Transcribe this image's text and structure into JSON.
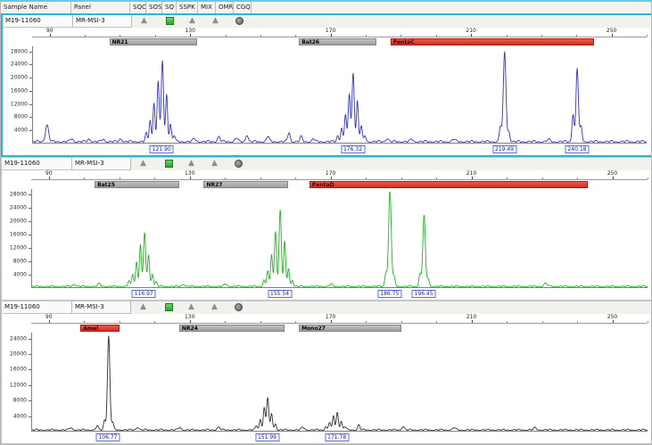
{
  "header": {
    "columns": [
      {
        "label": "Sample Name"
      },
      {
        "label": "Panel"
      },
      {
        "label": "SQO"
      },
      {
        "label": "SOS"
      },
      {
        "label": "SQ"
      },
      {
        "label": "SSPK"
      },
      {
        "label": "MIX"
      },
      {
        "label": "OMR"
      },
      {
        "label": "CGQ"
      }
    ]
  },
  "axis": {
    "xmin": 85,
    "xmax": 260,
    "major_ticks": [
      90,
      130,
      170,
      210,
      250
    ],
    "minor_tick_step": 10
  },
  "colors": {
    "selected_border": "#2fb4d8",
    "marker_gray": "#ababab",
    "marker_red": "#e23b3b",
    "peak_label_border": "#5a6fd6"
  },
  "panels": [
    {
      "sample_name": "M19-11060",
      "panel_name": "MR-MSI-3",
      "selected": true,
      "trace_color": "#3333cc",
      "ymax": 29500,
      "y_ticks": [
        28000,
        24000,
        20000,
        16000,
        12000,
        8000,
        4000
      ],
      "noise_amp": 650,
      "flags": [
        "triangle",
        "green-square",
        "triangle",
        "triangle",
        "circle"
      ],
      "markers": [
        {
          "label": "NR21",
          "start": 107,
          "end": 132,
          "style": "gray"
        },
        {
          "label": "Bat26",
          "start": 161,
          "end": 183,
          "style": "gray"
        },
        {
          "label": "PentaC",
          "start": 187,
          "end": 245,
          "style": "red"
        }
      ],
      "peaks": [
        [
          89,
          5200,
          0.45
        ],
        [
          96,
          900,
          0.4
        ],
        [
          101,
          800,
          0.4
        ],
        [
          105,
          750,
          0.4
        ],
        [
          110,
          850,
          0.4
        ],
        [
          117.3,
          2500,
          0.28
        ],
        [
          118.4,
          6500,
          0.28
        ],
        [
          119.5,
          12000,
          0.28
        ],
        [
          120.7,
          18500,
          0.3
        ],
        [
          121.9,
          24500,
          0.32
        ],
        [
          123.1,
          14500,
          0.28
        ],
        [
          124.2,
          5500,
          0.28
        ],
        [
          125.3,
          2000,
          0.28
        ],
        [
          131,
          900,
          0.4
        ],
        [
          138,
          1500,
          0.38
        ],
        [
          143,
          1100,
          0.38
        ],
        [
          146,
          2100,
          0.35
        ],
        [
          152,
          1700,
          0.35
        ],
        [
          158,
          2800,
          0.35
        ],
        [
          161.5,
          1500,
          0.35
        ],
        [
          165,
          900,
          0.35
        ],
        [
          171.9,
          1900,
          0.28
        ],
        [
          173,
          4200,
          0.28
        ],
        [
          174.1,
          8500,
          0.28
        ],
        [
          175.2,
          14500,
          0.3
        ],
        [
          176.3,
          21000,
          0.32
        ],
        [
          177.5,
          12500,
          0.28
        ],
        [
          178.6,
          5000,
          0.28
        ],
        [
          179.7,
          1800,
          0.28
        ],
        [
          186,
          1000,
          0.4
        ],
        [
          193,
          700,
          0.4
        ],
        [
          205,
          800,
          0.4
        ],
        [
          218.3,
          4800,
          0.3
        ],
        [
          219.5,
          27500,
          0.38
        ],
        [
          220.7,
          3200,
          0.3
        ],
        [
          232,
          600,
          0.4
        ],
        [
          239,
          8500,
          0.3
        ],
        [
          240.2,
          22500,
          0.34
        ],
        [
          241.3,
          4500,
          0.3
        ]
      ],
      "peak_labels": [
        {
          "x": 121.9,
          "text": "121.90"
        },
        {
          "x": 176.32,
          "text": "176.32"
        },
        {
          "x": 219.49,
          "text": "219.49"
        },
        {
          "x": 240.18,
          "text": "240.18"
        }
      ]
    },
    {
      "sample_name": "M19-11060",
      "panel_name": "MR-MSI-3",
      "selected": false,
      "trace_color": "#22b422",
      "ymax": 29500,
      "y_ticks": [
        28000,
        24000,
        20000,
        16000,
        12000,
        8000,
        4000
      ],
      "noise_amp": 420,
      "flags": [
        "triangle",
        "green-square",
        "triangle",
        "triangle",
        "circle"
      ],
      "markers": [
        {
          "label": "Bat25",
          "start": 103,
          "end": 127,
          "style": "gray"
        },
        {
          "label": "NR27",
          "start": 134,
          "end": 158,
          "style": "gray"
        },
        {
          "label": "PentaD",
          "start": 164,
          "end": 243,
          "style": "red"
        }
      ],
      "peaks": [
        [
          97,
          700,
          0.4
        ],
        [
          104,
          800,
          0.4
        ],
        [
          112.5,
          1600,
          0.28
        ],
        [
          113.6,
          3800,
          0.28
        ],
        [
          114.7,
          7500,
          0.28
        ],
        [
          115.8,
          12500,
          0.28
        ],
        [
          116.97,
          16000,
          0.32
        ],
        [
          118.1,
          9500,
          0.28
        ],
        [
          119.2,
          3800,
          0.28
        ],
        [
          120.3,
          1400,
          0.28
        ],
        [
          128,
          700,
          0.4
        ],
        [
          140,
          800,
          0.4
        ],
        [
          150.9,
          2000,
          0.28
        ],
        [
          152,
          4800,
          0.28
        ],
        [
          153.1,
          9500,
          0.28
        ],
        [
          154.2,
          16500,
          0.3
        ],
        [
          155.54,
          23000,
          0.32
        ],
        [
          156.8,
          13500,
          0.28
        ],
        [
          157.9,
          5500,
          0.28
        ],
        [
          159,
          2000,
          0.28
        ],
        [
          170,
          700,
          0.4
        ],
        [
          185.6,
          4200,
          0.3
        ],
        [
          186.75,
          28500,
          0.38
        ],
        [
          187.9,
          2800,
          0.3
        ],
        [
          195.3,
          3800,
          0.3
        ],
        [
          196.45,
          21500,
          0.36
        ],
        [
          197.6,
          2500,
          0.3
        ],
        [
          231,
          900,
          0.5
        ]
      ],
      "peak_labels": [
        {
          "x": 116.97,
          "text": "116.97"
        },
        {
          "x": 155.54,
          "text": "155.54"
        },
        {
          "x": 186.75,
          "text": "186.75"
        },
        {
          "x": 196.45,
          "text": "196.45"
        }
      ]
    },
    {
      "sample_name": "M19-11060",
      "panel_name": "MR-MSI-3",
      "selected": false,
      "trace_color": "#303030",
      "ymax": 25500,
      "y_ticks": [
        24000,
        20000,
        16000,
        12000,
        8000,
        4000
      ],
      "noise_amp": 380,
      "flags": [
        "triangle",
        "green-square",
        "triangle",
        "triangle",
        "circle"
      ],
      "markers": [
        {
          "label": "Amel",
          "start": 99,
          "end": 110,
          "style": "red"
        },
        {
          "label": "NR24",
          "start": 127,
          "end": 157,
          "style": "gray"
        },
        {
          "label": "Mono27",
          "start": 161,
          "end": 190,
          "style": "gray"
        }
      ],
      "peaks": [
        [
          96,
          600,
          0.4
        ],
        [
          103.5,
          1100,
          0.3
        ],
        [
          105.6,
          2600,
          0.28
        ],
        [
          106.77,
          24500,
          0.34
        ],
        [
          107.9,
          2000,
          0.28
        ],
        [
          115,
          700,
          0.4
        ],
        [
          127,
          650,
          0.4
        ],
        [
          138,
          700,
          0.4
        ],
        [
          148.8,
          1100,
          0.28
        ],
        [
          149.9,
          2800,
          0.28
        ],
        [
          151,
          5800,
          0.28
        ],
        [
          151.99,
          8500,
          0.3
        ],
        [
          153.1,
          4200,
          0.28
        ],
        [
          154.2,
          1600,
          0.28
        ],
        [
          162,
          700,
          0.4
        ],
        [
          168.5,
          900,
          0.28
        ],
        [
          169.6,
          2100,
          0.28
        ],
        [
          170.7,
          3600,
          0.28
        ],
        [
          171.78,
          4600,
          0.3
        ],
        [
          172.9,
          2300,
          0.28
        ],
        [
          174,
          900,
          0.28
        ],
        [
          177.9,
          1300,
          0.3
        ],
        [
          190.5,
          900,
          0.35
        ],
        [
          205,
          600,
          0.4
        ],
        [
          228,
          550,
          0.4
        ]
      ],
      "peak_labels": [
        {
          "x": 106.77,
          "text": "106.77"
        },
        {
          "x": 151.99,
          "text": "151.99"
        },
        {
          "x": 171.78,
          "text": "171.78"
        }
      ]
    }
  ]
}
